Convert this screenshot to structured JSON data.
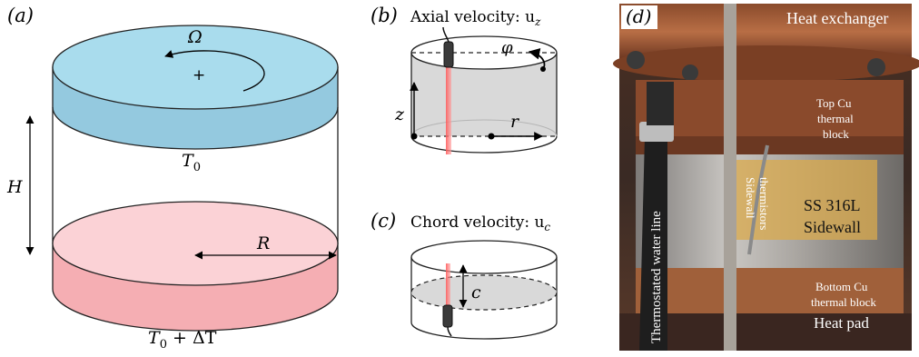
{
  "panels": {
    "a": {
      "label": "(a)",
      "omega": "Ω",
      "plus": "+",
      "top_temp": "T",
      "top_temp_sub": "0",
      "height_label": "H",
      "radius_label": "R",
      "bottom_temp": "T",
      "bottom_temp_sub": "0",
      "bottom_temp_rest": " + ΔT",
      "top_plate_color": "#a9dced",
      "top_plate_side_color": "#94c9df",
      "bottom_plate_color": "#fbd2d6",
      "bottom_plate_side_color": "#f5aeb3"
    },
    "b": {
      "label": "(b)",
      "title": "Axial velocity: u",
      "title_sub": "z",
      "phi": "φ",
      "z": "z",
      "r": "r"
    },
    "c": {
      "label": "(c)",
      "title": "Chord velocity: u",
      "title_sub": "c",
      "c": "c"
    },
    "d": {
      "label": "(d)",
      "heat_exchanger": "Heat exchanger",
      "top_cu_1": "Top Cu",
      "top_cu_2": "thermal",
      "top_cu_3": "block",
      "sidewall_therm_1": "Sidewall",
      "sidewall_therm_2": "thermistors",
      "ss_1": "SS 316L",
      "ss_2": "Sidewall",
      "water_line": "Thermostated water line",
      "bottom_cu_1": "Bottom Cu",
      "bottom_cu_2": "thermal block",
      "heat_pad": "Heat pad"
    }
  }
}
